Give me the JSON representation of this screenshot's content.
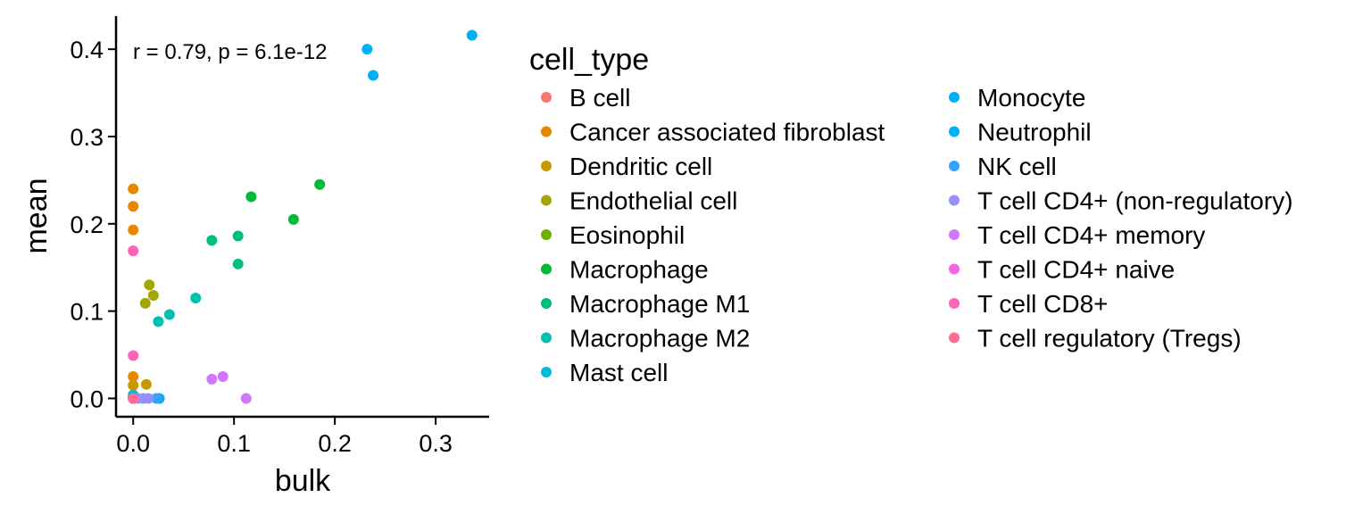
{
  "chart_data": {
    "type": "scatter",
    "xlabel": "bulk",
    "ylabel": "mean",
    "xlim": [
      -0.017,
      0.353
    ],
    "ylim": [
      -0.021,
      0.438
    ],
    "xticks": [
      "0.0",
      "0.1",
      "0.2",
      "0.3"
    ],
    "yticks": [
      "0.0",
      "0.1",
      "0.2",
      "0.3",
      "0.4"
    ],
    "annotation": "r = 0.79, p = 6.1e-12",
    "grid": false,
    "legend": {
      "title": "cell_type",
      "position": "right"
    },
    "series": [
      {
        "name": "B cell",
        "color": "#F8766D",
        "points": [
          [
            0.0,
            0.0
          ]
        ]
      },
      {
        "name": "Cancer associated fibroblast",
        "color": "#E58700",
        "points": [
          [
            0.0,
            0.24
          ],
          [
            0.0,
            0.22
          ],
          [
            0.0,
            0.193
          ],
          [
            0.0,
            0.025
          ],
          [
            0.0,
            0.002
          ]
        ]
      },
      {
        "name": "Dendritic cell",
        "color": "#C99800",
        "points": [
          [
            0.013,
            0.016
          ],
          [
            0.0,
            0.015
          ],
          [
            0.0,
            0.0
          ]
        ]
      },
      {
        "name": "Endothelial cell",
        "color": "#A3A500",
        "points": [
          [
            0.016,
            0.13
          ],
          [
            0.02,
            0.118
          ],
          [
            0.012,
            0.109
          ]
        ]
      },
      {
        "name": "Eosinophil",
        "color": "#6BB100",
        "points": [
          [
            0.0,
            0.001
          ]
        ]
      },
      {
        "name": "Macrophage",
        "color": "#00BA38",
        "points": [
          [
            0.185,
            0.245
          ],
          [
            0.117,
            0.231
          ],
          [
            0.159,
            0.205
          ]
        ]
      },
      {
        "name": "Macrophage M1",
        "color": "#00BF7D",
        "points": [
          [
            0.104,
            0.186
          ],
          [
            0.078,
            0.181
          ],
          [
            0.104,
            0.154
          ]
        ]
      },
      {
        "name": "Macrophage M2",
        "color": "#00C0AF",
        "points": [
          [
            0.062,
            0.115
          ],
          [
            0.036,
            0.096
          ],
          [
            0.025,
            0.088
          ]
        ]
      },
      {
        "name": "Mast cell",
        "color": "#00BCD8",
        "points": [
          [
            0.0,
            0.004
          ]
        ]
      },
      {
        "name": "Monocyte",
        "color": "#00B0F6",
        "points": [
          [
            0.336,
            0.416
          ],
          [
            0.232,
            0.4
          ],
          [
            0.238,
            0.37
          ]
        ]
      },
      {
        "name": "Neutrophil",
        "color": "#00B0F6",
        "points": [
          [
            0.026,
            0.0
          ],
          [
            0.0,
            0.0
          ]
        ]
      },
      {
        "name": "NK cell",
        "color": "#35A2FF",
        "points": [
          [
            0.023,
            0.0
          ]
        ]
      },
      {
        "name": "T cell CD4+ (non-regulatory)",
        "color": "#9590FF",
        "points": [
          [
            0.005,
            0.0
          ],
          [
            0.01,
            0.0
          ],
          [
            0.015,
            0.0
          ]
        ]
      },
      {
        "name": "T cell CD4+ memory",
        "color": "#D376FF",
        "points": [
          [
            0.089,
            0.025
          ],
          [
            0.078,
            0.022
          ],
          [
            0.112,
            0.0
          ]
        ]
      },
      {
        "name": "T cell CD4+ naive",
        "color": "#F265E7",
        "points": [
          [
            0.0,
            0.0
          ]
        ]
      },
      {
        "name": "T cell CD8+",
        "color": "#FF63B6",
        "points": [
          [
            0.0,
            0.169
          ],
          [
            0.0,
            0.049
          ],
          [
            0.0,
            0.0
          ]
        ]
      },
      {
        "name": "T cell regulatory (Tregs)",
        "color": "#FF6C91",
        "points": [
          [
            0.0,
            0.0
          ]
        ]
      }
    ]
  }
}
